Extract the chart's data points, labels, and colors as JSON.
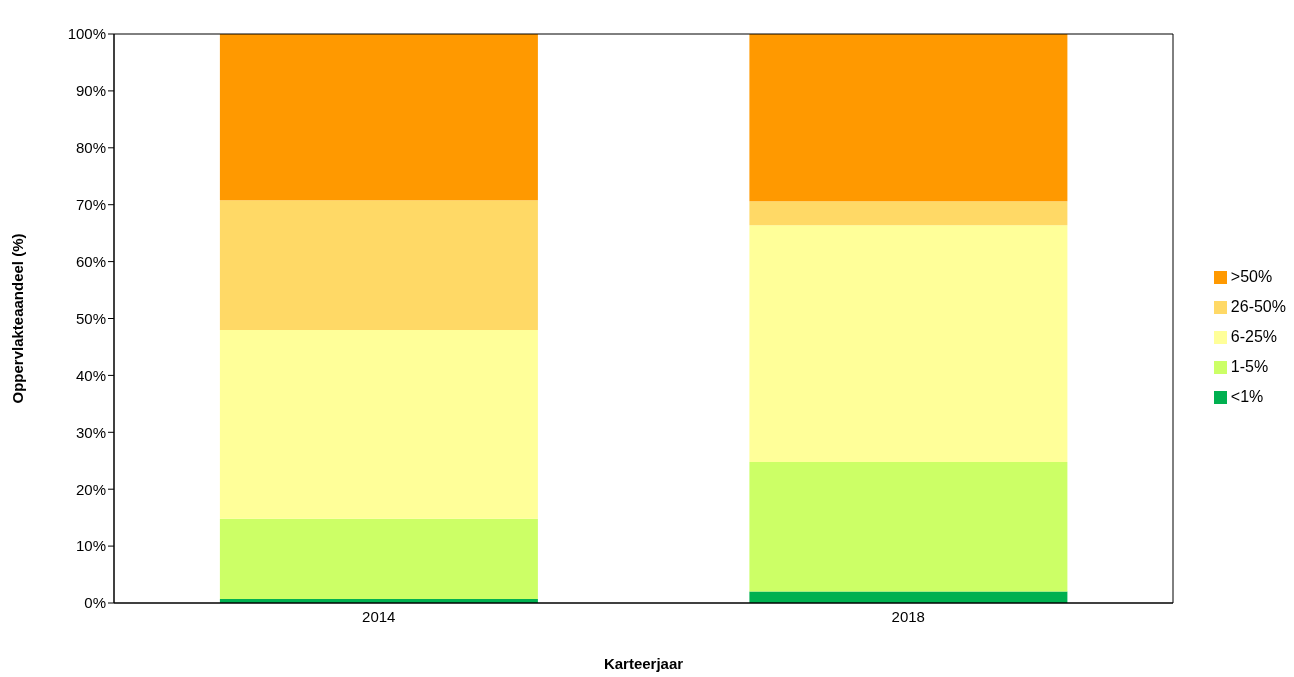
{
  "chart_data": {
    "type": "bar",
    "stacked": true,
    "xlabel": "Karteerjaar",
    "ylabel": "Oppervlakteaandeel (%)",
    "categories": [
      "2014",
      "2018"
    ],
    "series": [
      {
        "name": "<1%",
        "color": "#00b050",
        "values": [
          0.7,
          2.0
        ]
      },
      {
        "name": "1-5%",
        "color": "#ccff66",
        "values": [
          14.1,
          22.8
        ]
      },
      {
        "name": "6-25%",
        "color": "#ffff99",
        "values": [
          33.2,
          41.6
        ]
      },
      {
        "name": "26-50%",
        "color": "#ffd966",
        "values": [
          22.8,
          4.2
        ]
      },
      {
        "name": ">50%",
        "color": "#ff9900",
        "values": [
          29.2,
          29.4
        ]
      }
    ],
    "ylim": [
      0,
      100
    ],
    "yticks": [
      {
        "value": 0,
        "label": "0%"
      },
      {
        "value": 10,
        "label": "10%"
      },
      {
        "value": 20,
        "label": "20%"
      },
      {
        "value": 30,
        "label": "30%"
      },
      {
        "value": 40,
        "label": "40%"
      },
      {
        "value": 50,
        "label": "50%"
      },
      {
        "value": 60,
        "label": "60%"
      },
      {
        "value": 70,
        "label": "70%"
      },
      {
        "value": 80,
        "label": "80%"
      },
      {
        "value": 90,
        "label": "90%"
      },
      {
        "value": 100,
        "label": "100%"
      }
    ],
    "legend": "right"
  }
}
